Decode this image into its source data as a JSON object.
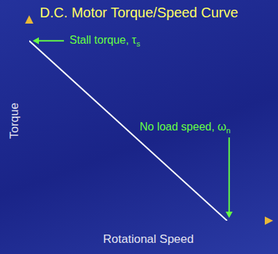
{
  "chart_data": {
    "type": "line",
    "title": "D.C. Motor Torque/Speed Curve",
    "x_label": "Rotational Speed",
    "y_label": "Torque",
    "x": [
      0,
      0.83
    ],
    "series": [
      {
        "name": "Torque",
        "color": "#ffffff",
        "values": [
          0.9,
          0
        ]
      }
    ],
    "xlim": [
      0,
      1
    ],
    "ylim": [
      0,
      1
    ],
    "tick_labels": false,
    "grid": false,
    "annotations": [
      "Stall torque, τs",
      "No load speed, ωn"
    ]
  }
}
